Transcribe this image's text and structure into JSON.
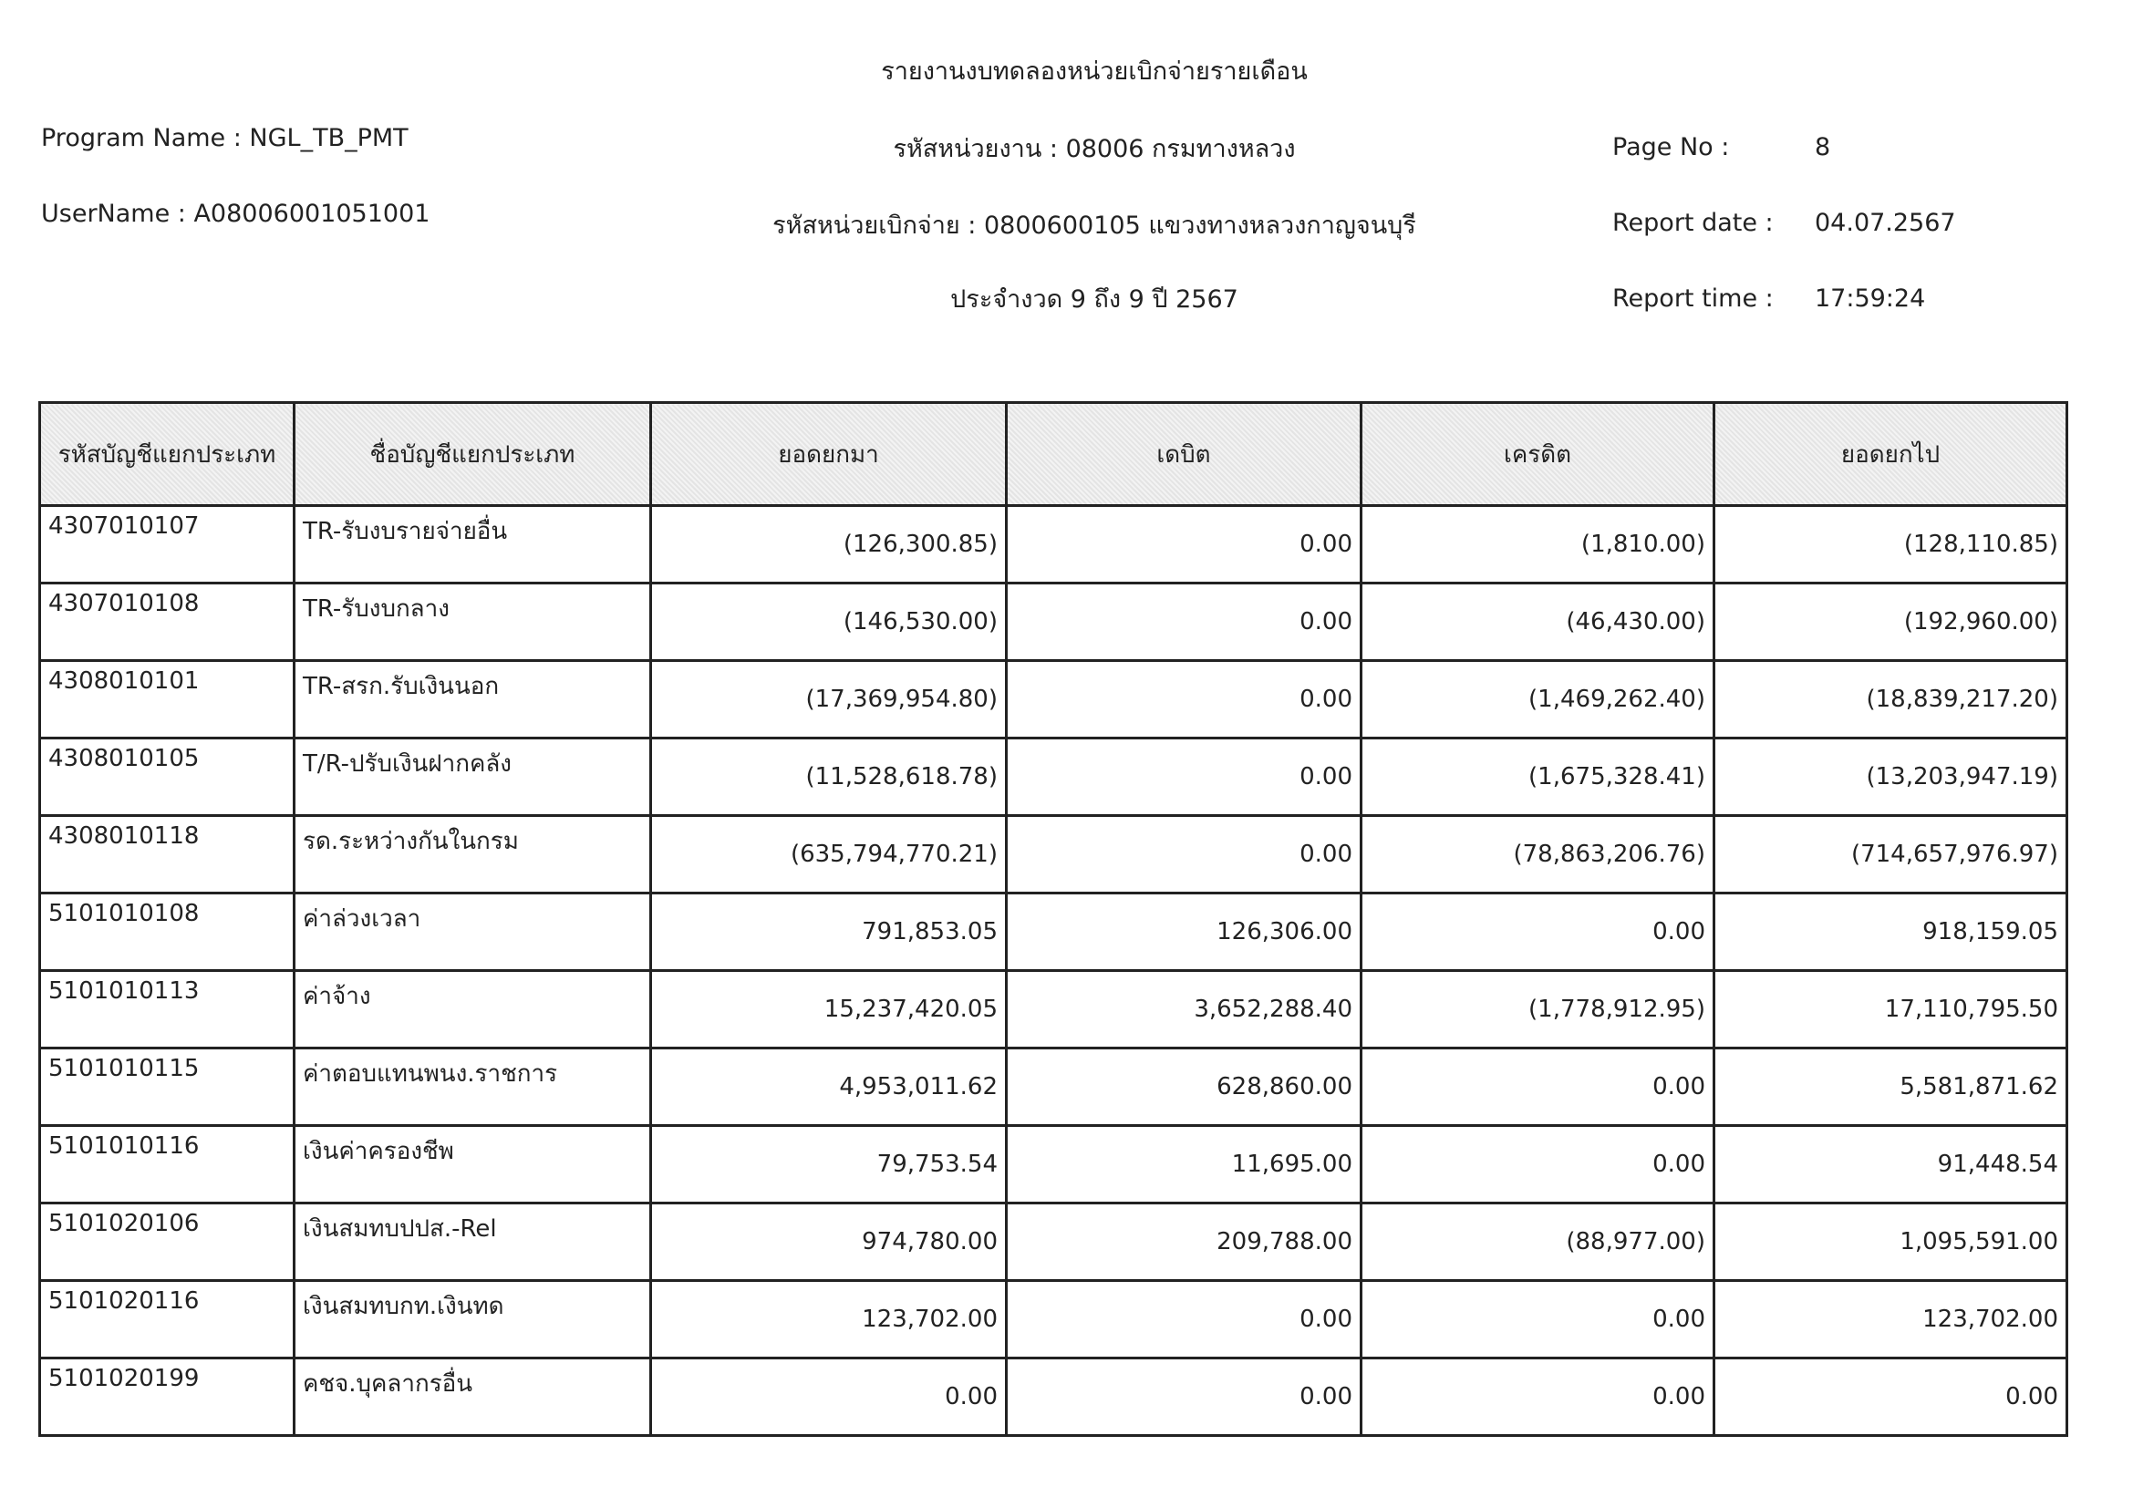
{
  "header": {
    "title": "รายงานงบทดลองหน่วยเบิกจ่ายรายเดือน",
    "program_name": "Program Name : NGL_TB_PMT",
    "user_name": "UserName : A08006001051001",
    "agency": "รหัสหน่วยงาน : 08006 กรมทางหลวง",
    "disbursing_unit": "รหัสหน่วยเบิกจ่าย : 0800600105 แขวงทางหลวงกาญจนบุรี",
    "period": "ประจำงวด 9 ถึง 9 ปี 2567",
    "page_no_label": "Page No :",
    "page_no": "8",
    "report_date_label": "Report date :",
    "report_date": "04.07.2567",
    "report_time_label": "Report time :",
    "report_time": "17:59:24"
  },
  "table": {
    "columns": [
      "รหัสบัญชีแยกประเภท",
      "ชื่อบัญชีแยกประเภท",
      "ยอดยกมา",
      "เดบิต",
      "เครดิต",
      "ยอดยกไป"
    ],
    "rows": [
      [
        "4307010107",
        "TR-รับงบรายจ่ายอื่น",
        "(126,300.85)",
        "0.00",
        "(1,810.00)",
        "(128,110.85)"
      ],
      [
        "4307010108",
        "TR-รับงบกลาง",
        "(146,530.00)",
        "0.00",
        "(46,430.00)",
        "(192,960.00)"
      ],
      [
        "4308010101",
        "TR-สรก.รับเงินนอก",
        "(17,369,954.80)",
        "0.00",
        "(1,469,262.40)",
        "(18,839,217.20)"
      ],
      [
        "4308010105",
        "T/R-ปรับเงินฝากคลัง",
        "(11,528,618.78)",
        "0.00",
        "(1,675,328.41)",
        "(13,203,947.19)"
      ],
      [
        "4308010118",
        "รด.ระหว่างกันในกรม",
        "(635,794,770.21)",
        "0.00",
        "(78,863,206.76)",
        "(714,657,976.97)"
      ],
      [
        "5101010108",
        "ค่าล่วงเวลา",
        "791,853.05",
        "126,306.00",
        "0.00",
        "918,159.05"
      ],
      [
        "5101010113",
        "ค่าจ้าง",
        "15,237,420.05",
        "3,652,288.40",
        "(1,778,912.95)",
        "17,110,795.50"
      ],
      [
        "5101010115",
        "ค่าตอบแทนพนง.ราชการ",
        "4,953,011.62",
        "628,860.00",
        "0.00",
        "5,581,871.62"
      ],
      [
        "5101010116",
        "เงินค่าครองชีพ",
        "79,753.54",
        "11,695.00",
        "0.00",
        "91,448.54"
      ],
      [
        "5101020106",
        "เงินสมทบปปส.-Rel",
        "974,780.00",
        "209,788.00",
        "(88,977.00)",
        "1,095,591.00"
      ],
      [
        "5101020116",
        "เงินสมทบกท.เงินทด",
        "123,702.00",
        "0.00",
        "0.00",
        "123,702.00"
      ],
      [
        "5101020199",
        "คชจ.บุคลากรอื่น",
        "0.00",
        "0.00",
        "0.00",
        "0.00"
      ]
    ]
  }
}
